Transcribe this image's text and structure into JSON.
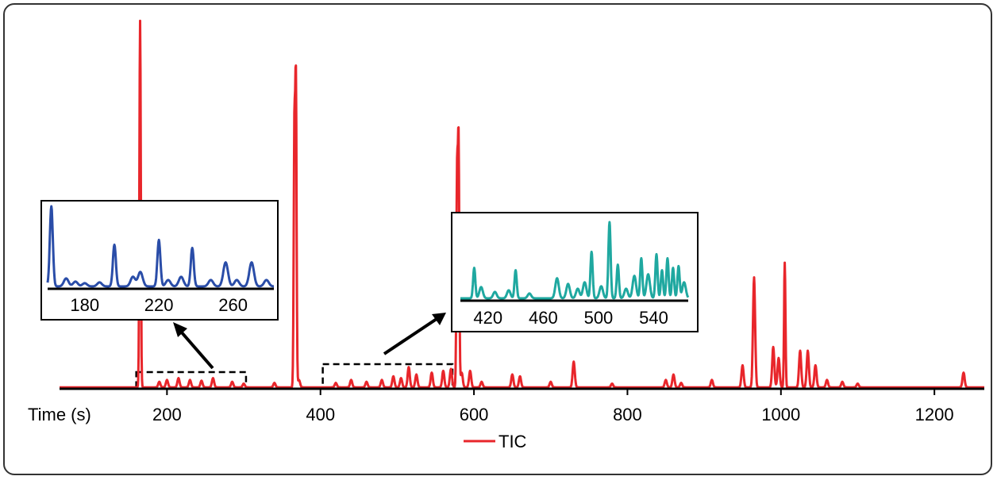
{
  "chart_data": {
    "type": "line",
    "xlabel": "Time (s)",
    "xlim": [
      60,
      1265
    ],
    "ylim": [
      0,
      1.0
    ],
    "xticks": [
      200,
      400,
      600,
      800,
      1000,
      1200
    ],
    "legend": {
      "placement": "bottom-center",
      "entries": [
        {
          "name": "TIC",
          "color": "#e8262b"
        }
      ]
    },
    "series": [
      {
        "name": "TIC",
        "color": "#e8262b",
        "baseline": 0.004,
        "peaks": [
          [
            165,
            1.0
          ],
          [
            190,
            0.015
          ],
          [
            200,
            0.02
          ],
          [
            215,
            0.025
          ],
          [
            230,
            0.02
          ],
          [
            245,
            0.018
          ],
          [
            260,
            0.025
          ],
          [
            285,
            0.015
          ],
          [
            300,
            0.01
          ],
          [
            340,
            0.012
          ],
          [
            366,
            0.68
          ],
          [
            368,
            0.82
          ],
          [
            372,
            0.02
          ],
          [
            420,
            0.012
          ],
          [
            440,
            0.02
          ],
          [
            460,
            0.015
          ],
          [
            480,
            0.02
          ],
          [
            495,
            0.03
          ],
          [
            505,
            0.025
          ],
          [
            515,
            0.055
          ],
          [
            525,
            0.035
          ],
          [
            545,
            0.04
          ],
          [
            560,
            0.045
          ],
          [
            570,
            0.05
          ],
          [
            578,
            0.57
          ],
          [
            580,
            0.66
          ],
          [
            584,
            0.04
          ],
          [
            595,
            0.045
          ],
          [
            610,
            0.015
          ],
          [
            650,
            0.035
          ],
          [
            660,
            0.03
          ],
          [
            700,
            0.015
          ],
          [
            730,
            0.07
          ],
          [
            780,
            0.01
          ],
          [
            850,
            0.02
          ],
          [
            860,
            0.035
          ],
          [
            870,
            0.012
          ],
          [
            910,
            0.02
          ],
          [
            950,
            0.06
          ],
          [
            965,
            0.3
          ],
          [
            990,
            0.11
          ],
          [
            997,
            0.08
          ],
          [
            1005,
            0.34
          ],
          [
            1025,
            0.1
          ],
          [
            1035,
            0.1
          ],
          [
            1045,
            0.06
          ],
          [
            1060,
            0.02
          ],
          [
            1080,
            0.015
          ],
          [
            1100,
            0.01
          ],
          [
            1238,
            0.04
          ]
        ]
      }
    ],
    "zoom_boxes": [
      {
        "x0": 160,
        "x1": 303
      },
      {
        "x0": 403,
        "x1": 572
      }
    ],
    "insets": [
      {
        "series_color": "#2a4da8",
        "xlim": [
          160,
          282
        ],
        "xticks": [
          180,
          220,
          260
        ],
        "peaks": [
          [
            162,
            1.0
          ],
          [
            170,
            0.1
          ],
          [
            175,
            0.06
          ],
          [
            180,
            0.04
          ],
          [
            188,
            0.05
          ],
          [
            196,
            0.52
          ],
          [
            206,
            0.12
          ],
          [
            210,
            0.18
          ],
          [
            220,
            0.58
          ],
          [
            225,
            0.08
          ],
          [
            232,
            0.12
          ],
          [
            238,
            0.48
          ],
          [
            248,
            0.08
          ],
          [
            256,
            0.3
          ],
          [
            262,
            0.08
          ],
          [
            270,
            0.3
          ],
          [
            278,
            0.08
          ]
        ]
      },
      {
        "series_color": "#1fa8a0",
        "xlim": [
          400,
          565
        ],
        "xticks": [
          420,
          460,
          500,
          540
        ],
        "peaks": [
          [
            410,
            0.38
          ],
          [
            415,
            0.14
          ],
          [
            425,
            0.08
          ],
          [
            435,
            0.1
          ],
          [
            440,
            0.35
          ],
          [
            450,
            0.06
          ],
          [
            470,
            0.25
          ],
          [
            478,
            0.18
          ],
          [
            485,
            0.12
          ],
          [
            490,
            0.2
          ],
          [
            495,
            0.58
          ],
          [
            502,
            0.15
          ],
          [
            508,
            0.95
          ],
          [
            514,
            0.42
          ],
          [
            520,
            0.12
          ],
          [
            526,
            0.28
          ],
          [
            531,
            0.5
          ],
          [
            536,
            0.3
          ],
          [
            542,
            0.55
          ],
          [
            546,
            0.35
          ],
          [
            550,
            0.5
          ],
          [
            554,
            0.38
          ],
          [
            558,
            0.4
          ],
          [
            562,
            0.2
          ]
        ]
      }
    ]
  }
}
